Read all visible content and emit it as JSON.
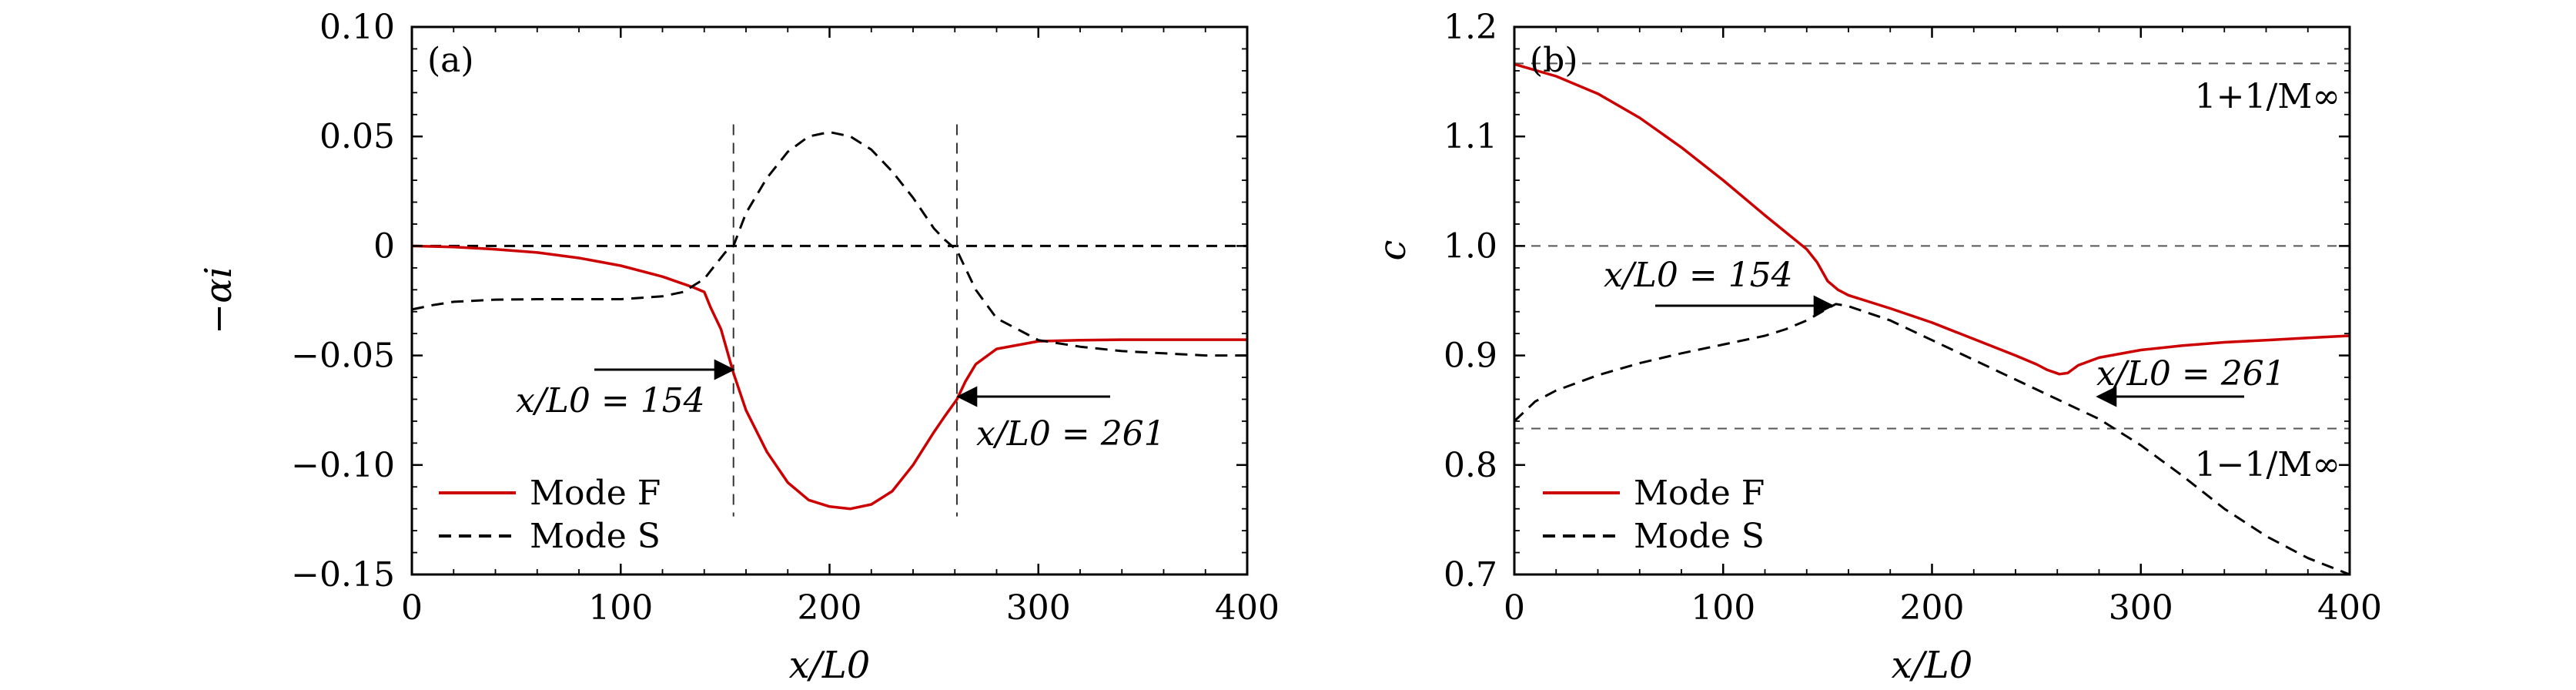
{
  "chart_data": [
    {
      "type": "line",
      "panel_label": "(a)",
      "xlabel": "x/L0",
      "ylabel": "−αi",
      "xlim": [
        0,
        400
      ],
      "ylim": [
        -0.15,
        0.1
      ],
      "x_ticks": [
        0,
        100,
        200,
        300,
        400
      ],
      "x_tick_labels": [
        "0",
        "100",
        "200",
        "300",
        "400"
      ],
      "y_ticks": [
        0.1,
        0.05,
        0,
        -0.05,
        -0.1,
        -0.15
      ],
      "y_tick_labels": [
        "0.10",
        "0.05",
        "0",
        "−0.05",
        "−0.10",
        "−0.15"
      ],
      "legend": {
        "position": "bottom-left",
        "items": [
          "Mode F",
          "Mode S"
        ]
      },
      "series": [
        {
          "name": "Mode F",
          "color": "#cc0000",
          "style": "solid",
          "x": [
            0,
            20,
            40,
            60,
            80,
            100,
            120,
            135,
            140,
            143,
            148,
            154,
            160,
            170,
            180,
            190,
            200,
            210,
            220,
            230,
            240,
            250,
            255,
            261,
            265,
            270,
            280,
            300,
            320,
            340,
            360,
            380,
            400
          ],
          "y": [
            0,
            -0.0005,
            -0.0015,
            -0.003,
            -0.0055,
            -0.009,
            -0.014,
            -0.019,
            -0.021,
            -0.028,
            -0.038,
            -0.058,
            -0.075,
            -0.094,
            -0.108,
            -0.116,
            -0.119,
            -0.12,
            -0.118,
            -0.112,
            -0.1,
            -0.085,
            -0.078,
            -0.07,
            -0.062,
            -0.054,
            -0.047,
            -0.0435,
            -0.043,
            -0.0428,
            -0.0428,
            -0.0428,
            -0.0428
          ]
        },
        {
          "name": "Mode S",
          "color": "#000000",
          "style": "dashed",
          "x": [
            0,
            10,
            20,
            40,
            60,
            80,
            100,
            120,
            130,
            140,
            145,
            150,
            154,
            160,
            170,
            180,
            190,
            200,
            210,
            220,
            230,
            240,
            250,
            255,
            261,
            265,
            270,
            280,
            300,
            320,
            340,
            360,
            380,
            400
          ],
          "y": [
            -0.029,
            -0.027,
            -0.0255,
            -0.0245,
            -0.0243,
            -0.0243,
            -0.0243,
            -0.023,
            -0.021,
            -0.015,
            -0.009,
            -0.003,
            0,
            0.015,
            0.031,
            0.043,
            0.05,
            0.052,
            0.05,
            0.044,
            0.034,
            0.022,
            0.008,
            0.003,
            -0.002,
            -0.01,
            -0.02,
            -0.033,
            -0.043,
            -0.046,
            -0.048,
            -0.049,
            -0.05,
            -0.05
          ]
        }
      ],
      "reference_lines": [
        {
          "orientation": "horizontal",
          "value": 0,
          "style": "dashed"
        },
        {
          "orientation": "vertical",
          "value": 154,
          "style": "dashed",
          "extent": [
            -0.12,
            0.052
          ]
        },
        {
          "orientation": "vertical",
          "value": 261,
          "style": "dashed",
          "extent": [
            -0.12,
            0.052
          ]
        }
      ],
      "annotations": [
        {
          "text": "x/L0 = 154",
          "arrow_to": [
            154,
            -0.058
          ]
        },
        {
          "text": "x/L0 = 261",
          "arrow_to": [
            261,
            -0.07
          ]
        }
      ]
    },
    {
      "type": "line",
      "panel_label": "(b)",
      "xlabel": "x/L0",
      "ylabel": "c",
      "xlim": [
        0,
        400
      ],
      "ylim": [
        0.7,
        1.2
      ],
      "x_ticks": [
        0,
        100,
        200,
        300,
        400
      ],
      "x_tick_labels": [
        "0",
        "100",
        "200",
        "300",
        "400"
      ],
      "y_ticks": [
        1.2,
        1.1,
        1.0,
        0.9,
        0.8,
        0.7
      ],
      "y_tick_labels": [
        "1.2",
        "1.1",
        "1.0",
        "0.9",
        "0.8",
        "0.7"
      ],
      "legend": {
        "position": "bottom-left",
        "items": [
          "Mode F",
          "Mode S"
        ]
      },
      "series": [
        {
          "name": "Mode F",
          "color": "#cc0000",
          "style": "solid",
          "x": [
            0,
            20,
            40,
            60,
            80,
            100,
            120,
            140,
            145,
            150,
            155,
            160,
            180,
            200,
            220,
            240,
            250,
            255,
            261,
            265,
            270,
            280,
            300,
            320,
            340,
            360,
            380,
            400
          ],
          "y": [
            1.166,
            1.155,
            1.139,
            1.117,
            1.09,
            1.06,
            1.028,
            0.997,
            0.985,
            0.968,
            0.96,
            0.955,
            0.943,
            0.93,
            0.915,
            0.9,
            0.892,
            0.887,
            0.883,
            0.884,
            0.891,
            0.898,
            0.905,
            0.909,
            0.912,
            0.914,
            0.916,
            0.918
          ]
        },
        {
          "name": "Mode S",
          "color": "#000000",
          "style": "dashed",
          "x": [
            0,
            10,
            20,
            40,
            60,
            80,
            100,
            120,
            130,
            140,
            150,
            154,
            160,
            180,
            200,
            220,
            240,
            260,
            280,
            300,
            320,
            340,
            360,
            380,
            400
          ],
          "y": [
            0.84,
            0.858,
            0.868,
            0.882,
            0.893,
            0.902,
            0.91,
            0.918,
            0.924,
            0.932,
            0.943,
            0.947,
            0.945,
            0.932,
            0.914,
            0.896,
            0.878,
            0.86,
            0.842,
            0.818,
            0.79,
            0.76,
            0.735,
            0.715,
            0.7
          ]
        }
      ],
      "reference_lines": [
        {
          "orientation": "horizontal",
          "value": 1.1667,
          "style": "dashed",
          "label": "1+1/M∞"
        },
        {
          "orientation": "horizontal",
          "value": 1.0,
          "style": "dashed"
        },
        {
          "orientation": "horizontal",
          "value": 0.8333,
          "style": "dashed",
          "label": "1−1/M∞"
        }
      ],
      "annotations": [
        {
          "text": "x/L0 = 154",
          "arrow_to": [
            154,
            0.947
          ]
        },
        {
          "text": "x/L0 = 261",
          "arrow_to": [
            261,
            0.883
          ]
        }
      ]
    }
  ]
}
